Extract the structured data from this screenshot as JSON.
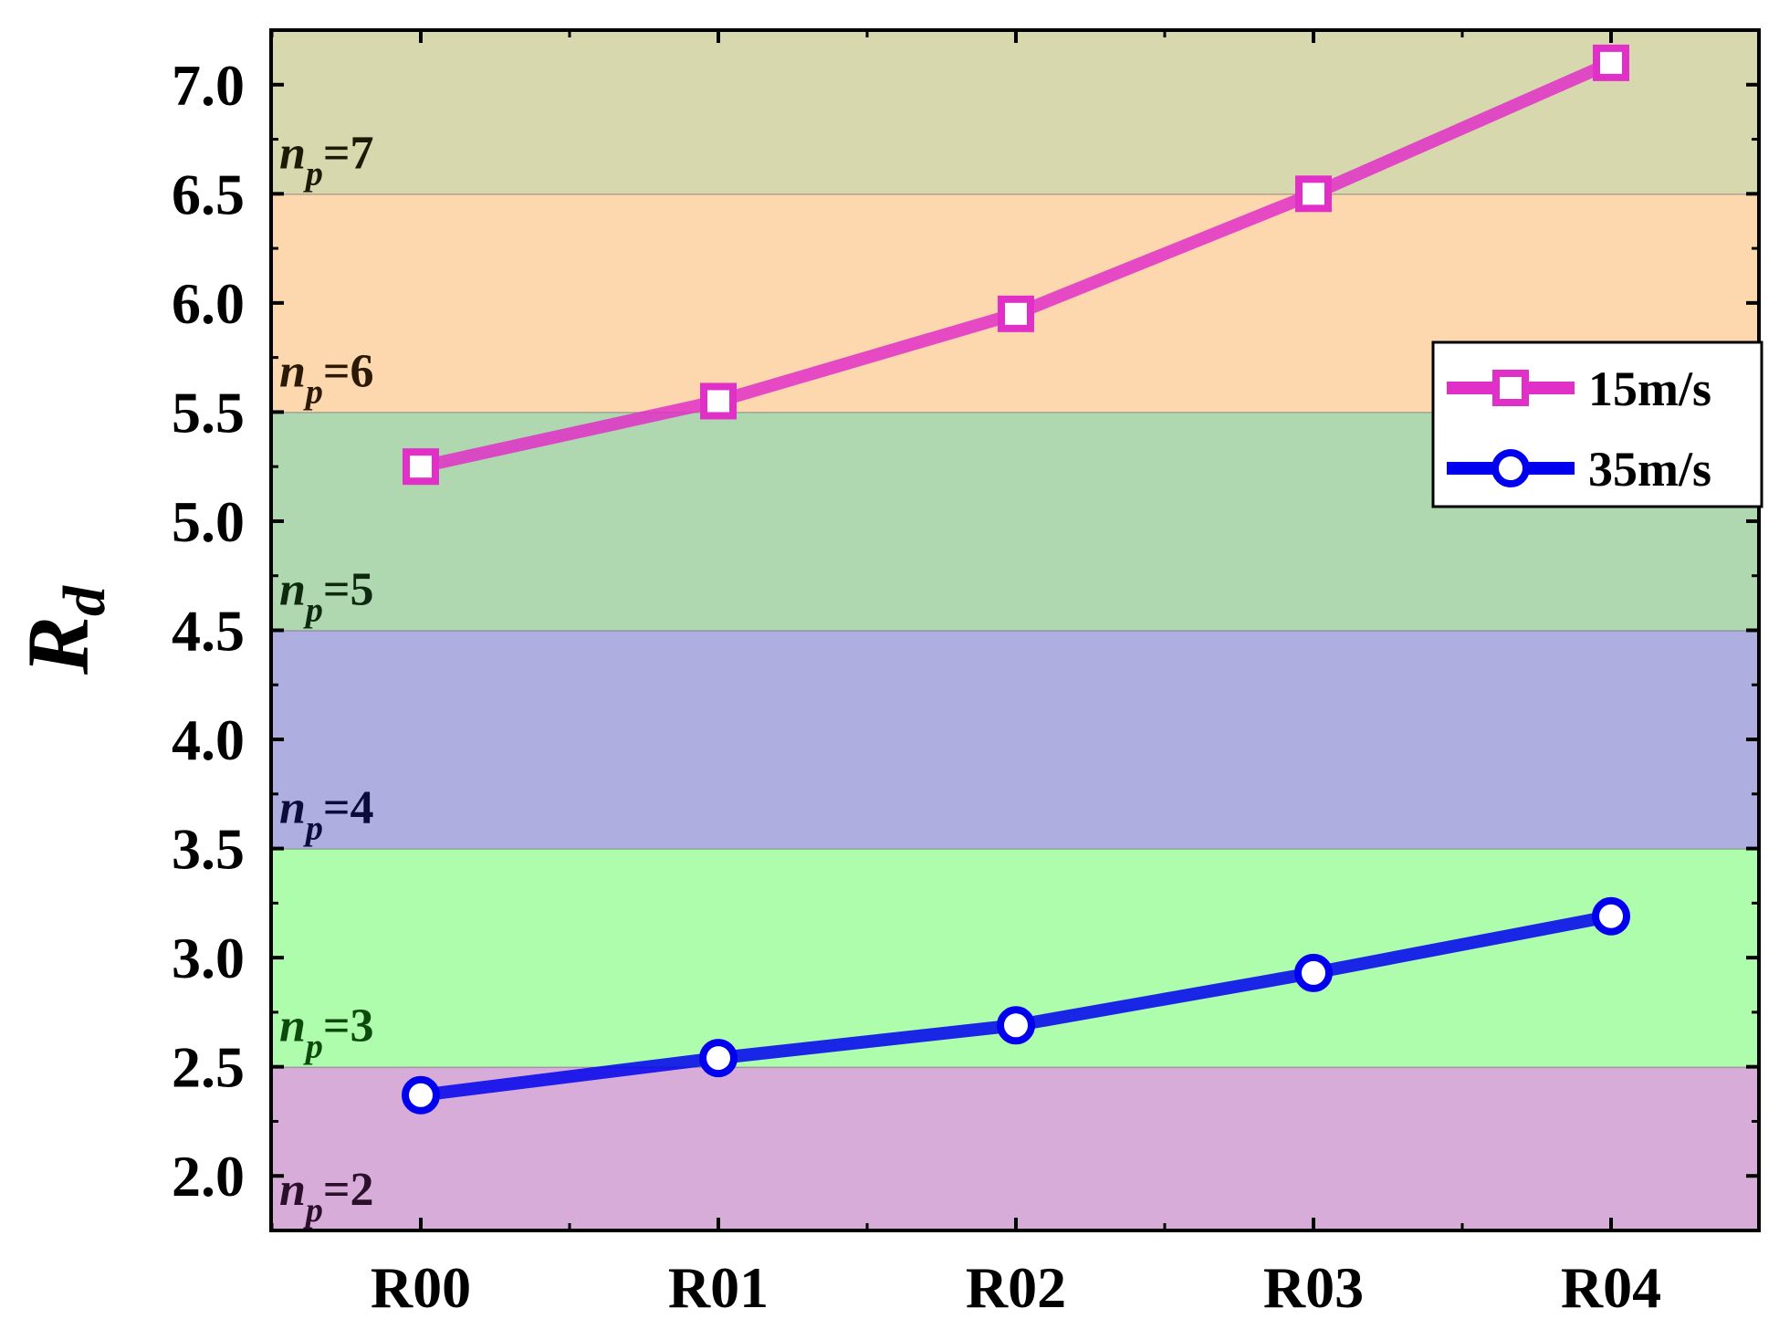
{
  "chart_data": {
    "type": "line",
    "ylabel": "R",
    "ylabel_sub": "d",
    "categories": [
      "R00",
      "R01",
      "R02",
      "R03",
      "R04"
    ],
    "ylim": [
      1.75,
      7.25
    ],
    "yticks": [
      2.0,
      2.5,
      3.0,
      3.5,
      4.0,
      4.5,
      5.0,
      5.5,
      6.0,
      6.5,
      7.0
    ],
    "ytick_labels": [
      "2.0",
      "2.5",
      "3.0",
      "3.5",
      "4.0",
      "4.5",
      "5.0",
      "5.5",
      "6.0",
      "6.5",
      "7.0"
    ],
    "grid": false,
    "legend_position": "right",
    "series": [
      {
        "name": "15m/s",
        "marker": "square",
        "color": "#e030c8",
        "values": [
          5.25,
          5.55,
          5.95,
          6.5,
          7.1
        ]
      },
      {
        "name": "35m/s",
        "marker": "circle",
        "color": "#0000ee",
        "values": [
          2.37,
          2.54,
          2.69,
          2.93,
          3.19
        ]
      }
    ],
    "bands": [
      {
        "from": 1.75,
        "to": 2.5,
        "color": "#d8acd8",
        "label": "n",
        "label_sub": "p",
        "label_suffix": "=2",
        "label_color": "#2a0f2a"
      },
      {
        "from": 2.5,
        "to": 3.5,
        "color": "#adfdad",
        "label": "n",
        "label_sub": "p",
        "label_suffix": "=3",
        "label_color": "#0b4a0b"
      },
      {
        "from": 3.5,
        "to": 4.5,
        "color": "#aeaee0",
        "label": "n",
        "label_sub": "p",
        "label_suffix": "=4",
        "label_color": "#0c0c3a"
      },
      {
        "from": 4.5,
        "to": 5.5,
        "color": "#b0d8b0",
        "label": "n",
        "label_sub": "p",
        "label_suffix": "=5",
        "label_color": "#0e2a0e"
      },
      {
        "from": 5.5,
        "to": 6.5,
        "color": "#fdd8ae",
        "label": "n",
        "label_sub": "p",
        "label_suffix": "=6",
        "label_color": "#2a1a05"
      },
      {
        "from": 6.5,
        "to": 7.25,
        "color": "#d8d8ae",
        "label": "n",
        "label_sub": "p",
        "label_suffix": "=7",
        "label_color": "#1a1a05"
      }
    ]
  }
}
